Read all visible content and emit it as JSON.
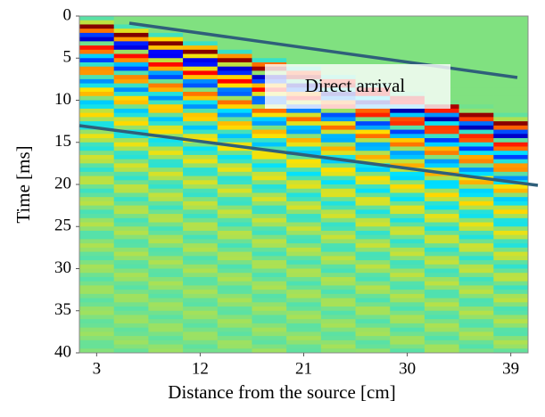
{
  "chart_data": {
    "type": "heatmap",
    "xlabel": "Distance from the source [cm]",
    "ylabel": "Time [ms]",
    "annotation": "Direct arrival",
    "xlim": [
      1.5,
      40.5
    ],
    "xticks": [
      3,
      12,
      21,
      30,
      39
    ],
    "ylim": [
      0,
      40
    ],
    "yticks": [
      0,
      5,
      10,
      15,
      20,
      25,
      30,
      35,
      40
    ],
    "y_inverted": true
  }
}
